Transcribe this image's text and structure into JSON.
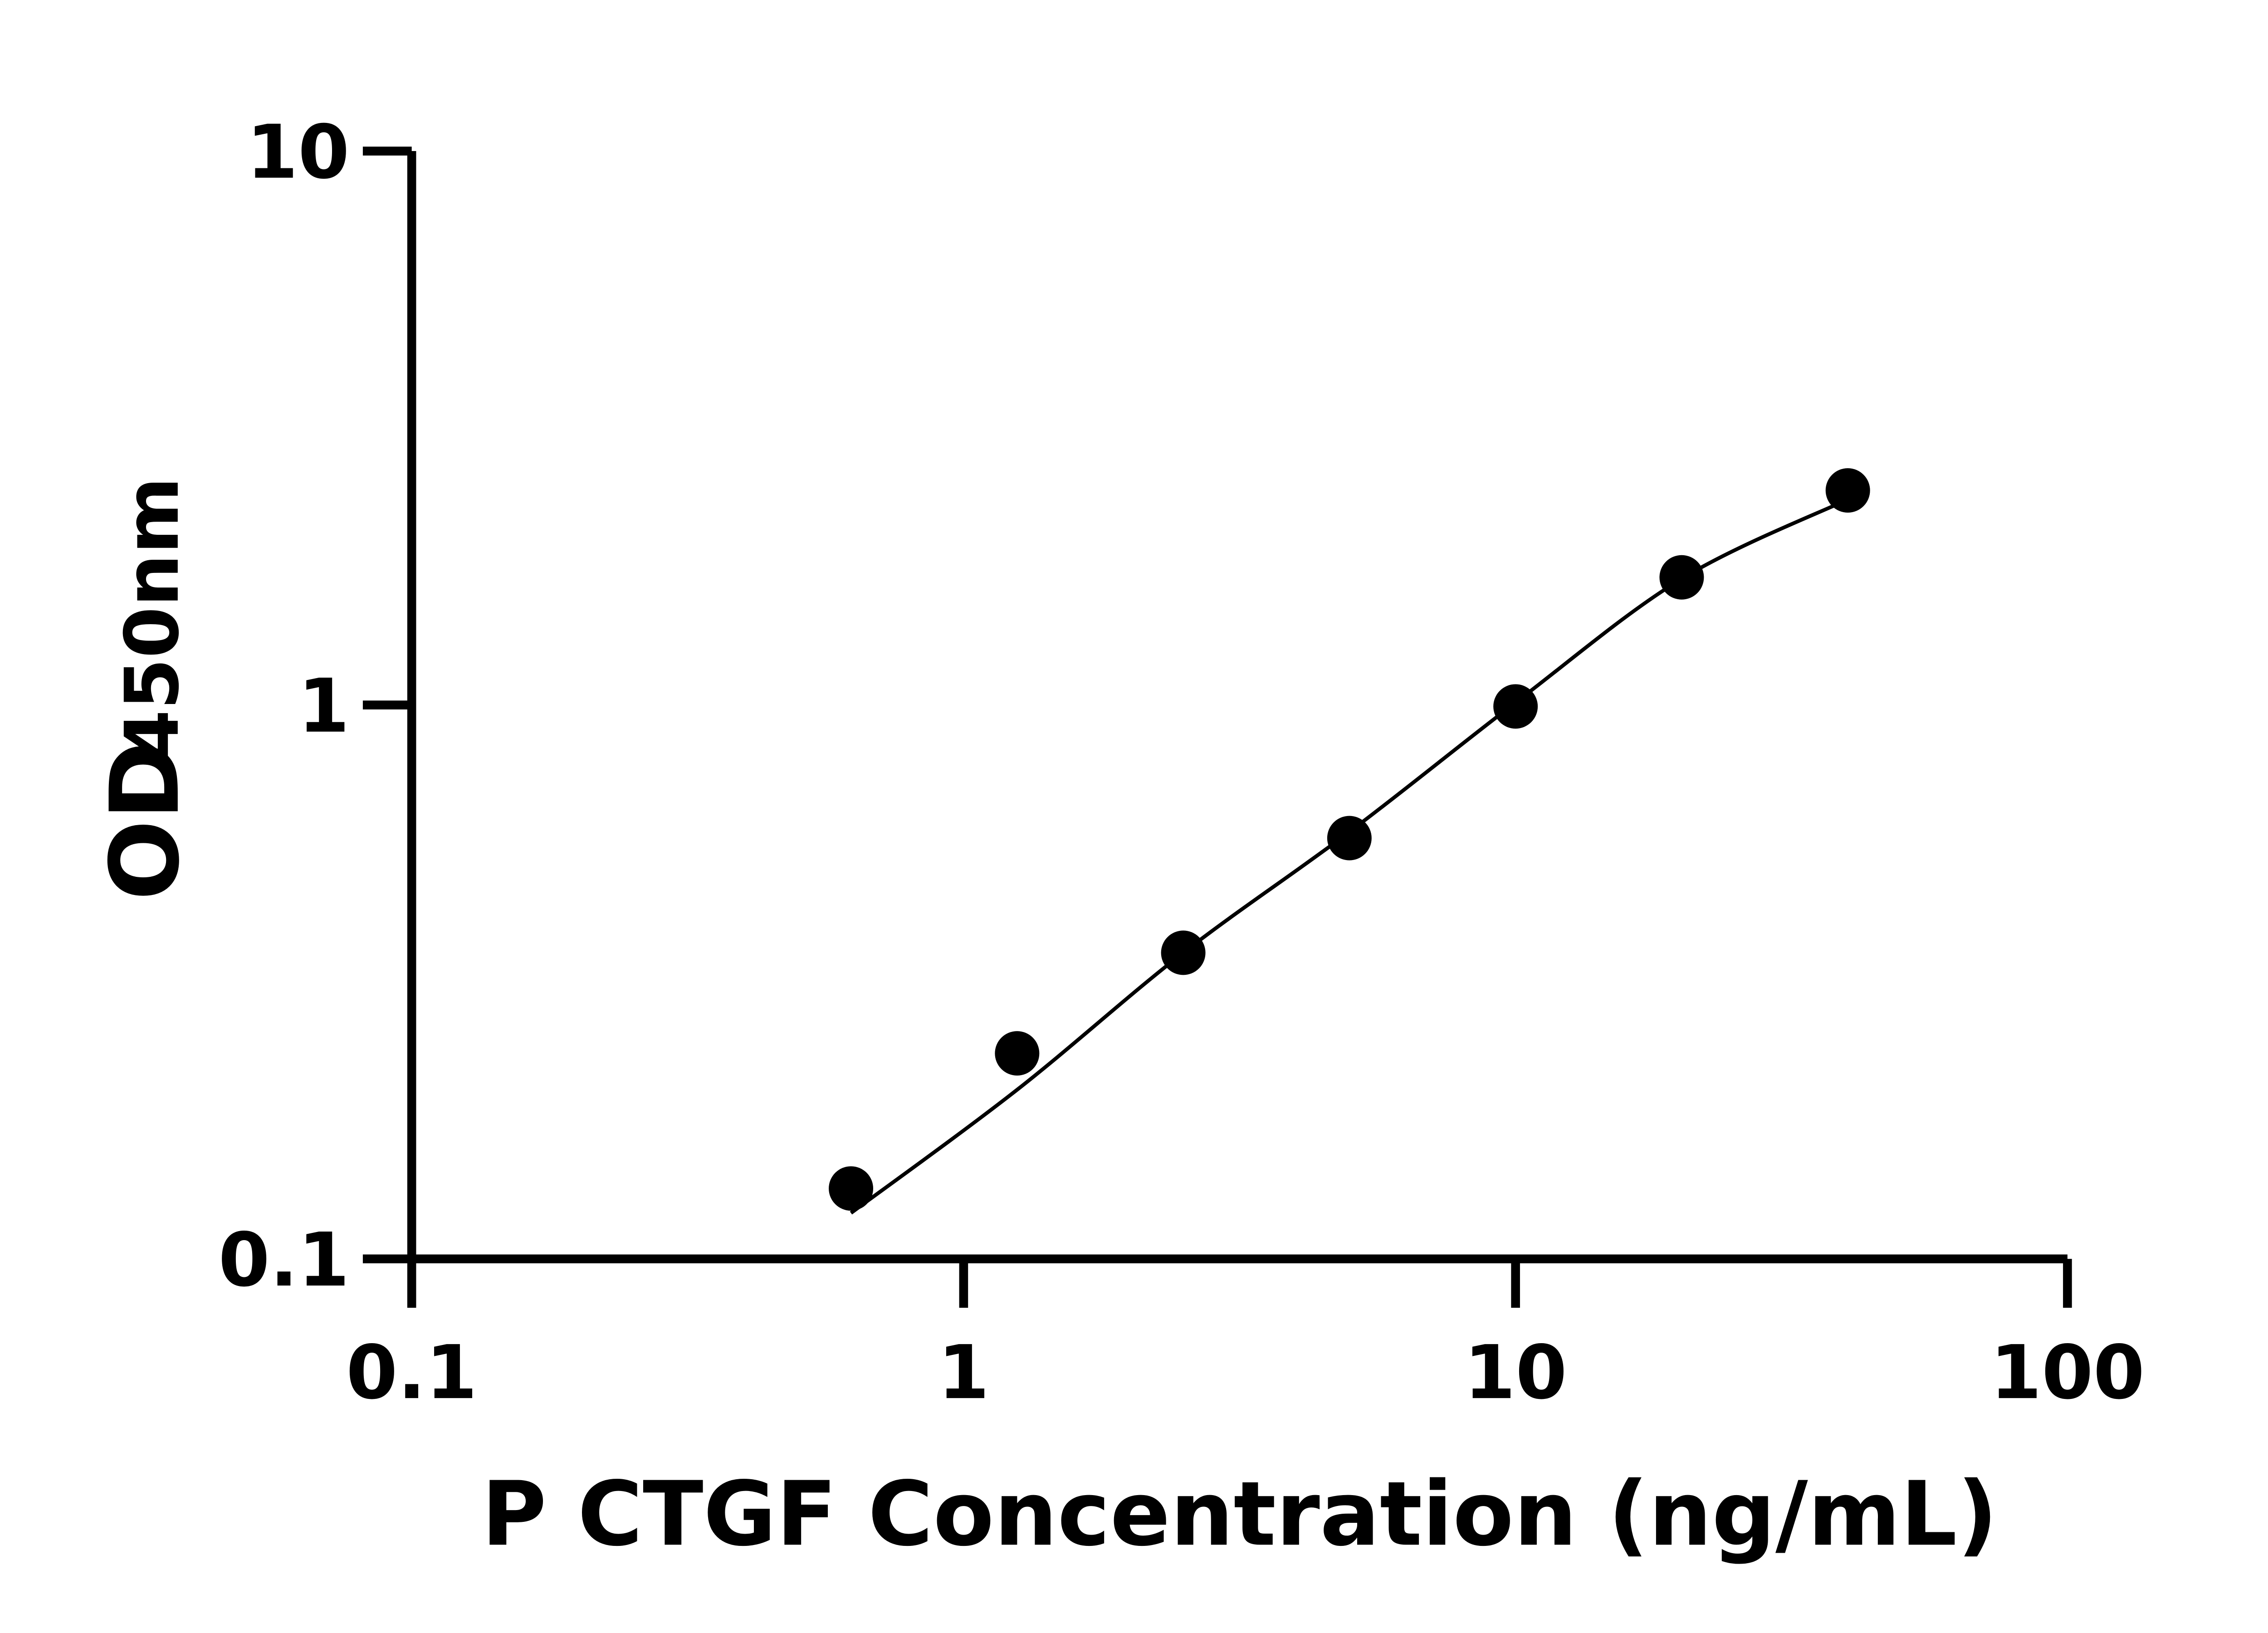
{
  "chart_data": {
    "type": "scatter",
    "title": "",
    "xlabel": "P CTGF Concentration (ng/mL)",
    "ylabel": "OD450nm",
    "ylabel_main": "OD",
    "ylabel_sub": "450nm",
    "x_scale": "log",
    "y_scale": "log",
    "xlim": [
      0.1,
      100
    ],
    "ylim": [
      0.1,
      10
    ],
    "x_ticks": [
      "0.1",
      "1",
      "10",
      "100"
    ],
    "y_ticks": [
      "0.1",
      "1",
      "10"
    ],
    "grid": false,
    "legend": "none",
    "color": "#000000",
    "points": {
      "x": [
        0.625,
        1.25,
        2.5,
        5,
        10,
        20,
        40
      ],
      "y": [
        0.134,
        0.235,
        0.357,
        0.575,
        0.994,
        1.7,
        2.44
      ]
    },
    "fit_curve": {
      "x": [
        0.625,
        1.25,
        2.5,
        5,
        10,
        20,
        40
      ],
      "y": [
        0.121,
        0.202,
        0.357,
        0.59,
        1.01,
        1.69,
        2.35
      ]
    }
  }
}
